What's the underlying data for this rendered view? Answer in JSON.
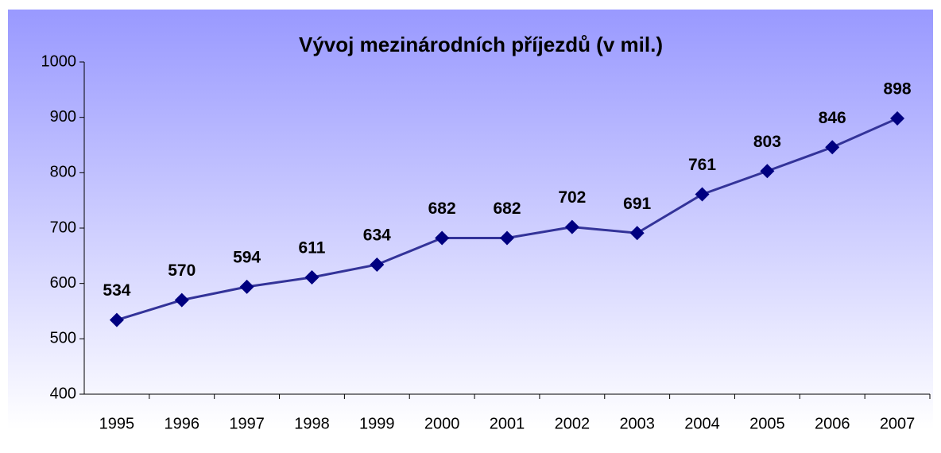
{
  "chart_data": {
    "type": "line",
    "title": "Vývoj mezinárodních příjezdů (v mil.)",
    "categories": [
      "1995",
      "1996",
      "1997",
      "1998",
      "1999",
      "2000",
      "2001",
      "2002",
      "2003",
      "2004",
      "2005",
      "2006",
      "2007"
    ],
    "values": [
      534,
      570,
      594,
      611,
      634,
      682,
      682,
      702,
      691,
      761,
      803,
      846,
      898
    ],
    "color": "#333399",
    "marker_color": "#000080",
    "ylim": [
      400,
      1000
    ],
    "yticks": [
      400,
      500,
      600,
      700,
      800,
      900,
      1000
    ],
    "grid": false
  }
}
